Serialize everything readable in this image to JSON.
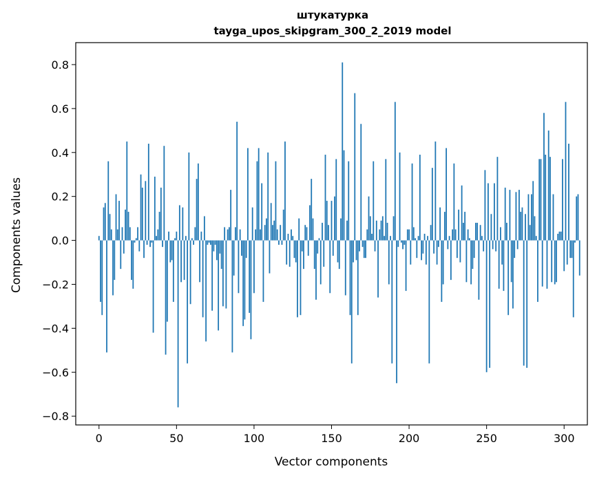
{
  "chart_data": {
    "type": "bar",
    "title": "штукатурка",
    "subtitle": "tayga_upos_skipgram_300_2_2019 model",
    "xlabel": "Vector components",
    "ylabel": "Components values",
    "xlim": [
      -15,
      315
    ],
    "ylim": [
      -0.84,
      0.9
    ],
    "xticks": [
      0,
      50,
      100,
      150,
      200,
      250,
      300
    ],
    "xtick_labels": [
      "0",
      "50",
      "100",
      "150",
      "200",
      "250",
      "300"
    ],
    "yticks": [
      -0.8,
      -0.6,
      -0.4,
      -0.2,
      0.0,
      0.2,
      0.4,
      0.6,
      0.8
    ],
    "ytick_labels": [
      "−0.8",
      "−0.6",
      "−0.4",
      "−0.2",
      "0.0",
      "0.2",
      "0.4",
      "0.6",
      "0.8"
    ],
    "grid": false,
    "bar_color": "#1f77b4",
    "values": [
      0.02,
      -0.28,
      -0.34,
      0.15,
      0.17,
      -0.51,
      0.36,
      0.12,
      0.05,
      -0.25,
      -0.18,
      0.21,
      0.05,
      0.18,
      -0.13,
      0.06,
      -0.06,
      0.14,
      0.45,
      0.13,
      0.06,
      -0.18,
      -0.22,
      -0.01,
      0.01,
      0.06,
      -0.05,
      0.3,
      0.24,
      -0.08,
      0.27,
      -0.02,
      0.44,
      -0.03,
      -0.01,
      -0.42,
      0.29,
      0.02,
      0.05,
      0.13,
      0.24,
      -0.03,
      0.43,
      -0.52,
      -0.37,
      0.04,
      -0.1,
      -0.09,
      -0.28,
      0.01,
      0.04,
      -0.76,
      0.16,
      -0.19,
      0.15,
      -0.18,
      0.02,
      -0.56,
      0.4,
      -0.29,
      0.01,
      -0.02,
      0.06,
      0.28,
      0.35,
      -0.19,
      0.04,
      -0.35,
      0.11,
      -0.46,
      -0.02,
      -0.01,
      -0.02,
      -0.32,
      -0.05,
      -0.02,
      -0.09,
      -0.41,
      -0.06,
      -0.13,
      -0.3,
      0.06,
      -0.31,
      0.05,
      0.06,
      0.23,
      -0.51,
      -0.16,
      0.06,
      0.54,
      -0.24,
      0.05,
      -0.07,
      -0.39,
      -0.36,
      -0.08,
      0.42,
      -0.33,
      -0.45,
      0.15,
      -0.24,
      0.05,
      0.36,
      0.42,
      0.05,
      0.26,
      -0.28,
      0.07,
      0.1,
      0.4,
      -0.15,
      0.17,
      0.07,
      0.09,
      0.36,
      0.05,
      -0.02,
      0.07,
      -0.02,
      0.14,
      0.45,
      -0.11,
      0.03,
      -0.12,
      0.05,
      0.02,
      -0.08,
      -0.1,
      -0.35,
      0.1,
      -0.34,
      -0.05,
      -0.13,
      0.07,
      0.06,
      -0.07,
      0.16,
      0.28,
      0.1,
      -0.13,
      -0.27,
      -0.06,
      0.01,
      -0.2,
      0.08,
      -0.12,
      0.39,
      0.18,
      0.07,
      -0.24,
      0.18,
      -0.07,
      0.2,
      0.37,
      -0.1,
      -0.13,
      0.1,
      0.81,
      0.41,
      -0.25,
      0.09,
      0.36,
      -0.34,
      -0.56,
      -0.1,
      0.67,
      -0.09,
      -0.34,
      -0.05,
      0.53,
      -0.03,
      -0.08,
      -0.08,
      0.05,
      0.2,
      0.11,
      0.03,
      0.36,
      -0.05,
      0.09,
      -0.26,
      0.05,
      0.09,
      0.11,
      0.02,
      0.37,
      0.08,
      -0.2,
      0.02,
      -0.56,
      0.11,
      0.63,
      -0.65,
      -0.03,
      0.4,
      -0.01,
      -0.04,
      -0.02,
      -0.23,
      0.05,
      0.05,
      -0.11,
      0.35,
      0.06,
      0.01,
      -0.08,
      0.02,
      0.39,
      -0.09,
      -0.06,
      0.03,
      -0.11,
      0.02,
      -0.56,
      0.07,
      0.33,
      -0.06,
      0.45,
      -0.11,
      -0.03,
      0.15,
      -0.28,
      -0.2,
      0.13,
      0.42,
      -0.04,
      0.02,
      -0.18,
      0.05,
      0.35,
      0.05,
      -0.08,
      0.14,
      -0.1,
      0.25,
      0.08,
      0.13,
      -0.19,
      0.05,
      0.01,
      -0.2,
      -0.13,
      -0.08,
      0.08,
      0.08,
      -0.27,
      0.07,
      0.02,
      -0.05,
      0.32,
      -0.6,
      0.26,
      -0.58,
      0.12,
      -0.04,
      0.26,
      -0.05,
      0.38,
      -0.22,
      0.06,
      -0.11,
      -0.23,
      0.24,
      0.08,
      -0.34,
      0.23,
      -0.19,
      -0.31,
      -0.08,
      0.22,
      -0.04,
      0.23,
      0.13,
      0.15,
      -0.57,
      0.12,
      -0.58,
      0.21,
      0.07,
      0.21,
      0.27,
      0.11,
      0.02,
      -0.28,
      0.37,
      0.37,
      -0.21,
      0.58,
      0.39,
      -0.22,
      0.5,
      0.38,
      -0.19,
      0.21,
      -0.2,
      -0.19,
      0.03,
      0.04,
      0.04,
      0.37,
      -0.14,
      0.63,
      -0.11,
      0.44,
      -0.08,
      -0.08,
      -0.35,
      -0.01,
      0.2,
      0.21,
      -0.16
    ]
  }
}
